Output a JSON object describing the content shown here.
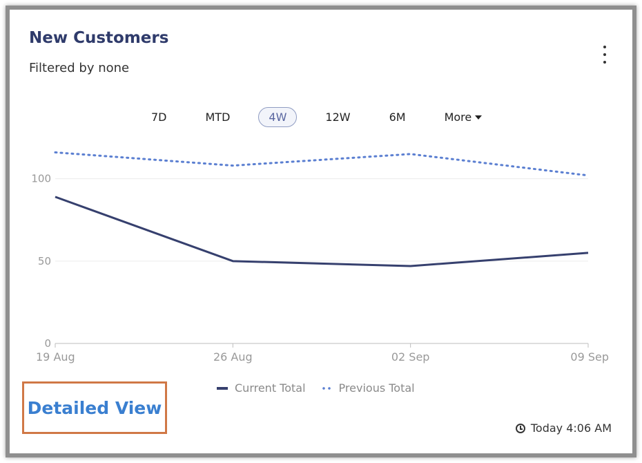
{
  "widget": {
    "title": "New Customers",
    "subtitle": "Filtered by none",
    "menu_icon": "kebab-menu-icon"
  },
  "ranges": [
    {
      "label": "7D",
      "active": false
    },
    {
      "label": "MTD",
      "active": false
    },
    {
      "label": "4W",
      "active": true
    },
    {
      "label": "12W",
      "active": false
    },
    {
      "label": "6M",
      "active": false
    },
    {
      "label": "More",
      "active": false,
      "icon": "caret-down-icon"
    }
  ],
  "chart_data": {
    "type": "line",
    "categories": [
      "19 Aug",
      "26 Aug",
      "02 Sep",
      "09 Sep"
    ],
    "series": [
      {
        "name": "Current Total",
        "values": [
          89,
          50,
          47,
          55
        ],
        "style": "solid",
        "color": "#36406e"
      },
      {
        "name": "Previous Total",
        "values": [
          116,
          108,
          115,
          102
        ],
        "style": "dotted",
        "color": "#5b7fd1"
      }
    ],
    "yticks": [
      0,
      50,
      100
    ],
    "ylim": [
      0,
      120
    ],
    "grid": true,
    "legend": "bottom"
  },
  "footer": {
    "detailed_view_label": "Detailed View",
    "timestamp": "Today 4:06 AM",
    "timestamp_icon": "clock-icon"
  }
}
